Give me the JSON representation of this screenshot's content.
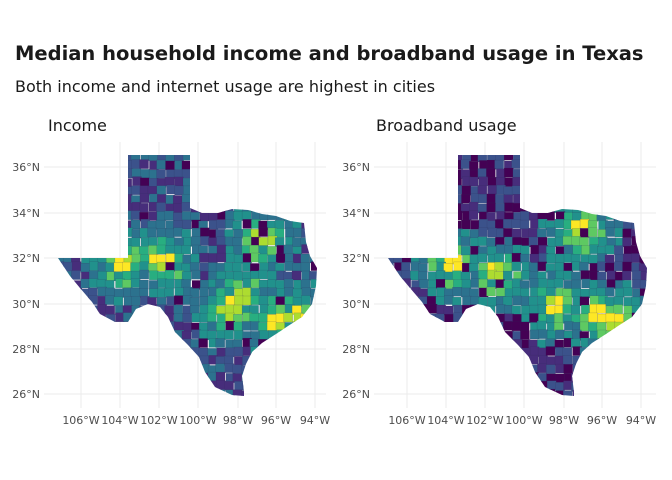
{
  "title": "Median household income and broadband usage in Texas",
  "subtitle": "Both income and internet usage are highest in cities",
  "panels": [
    {
      "id": "income",
      "title": "Income"
    },
    {
      "id": "broadband",
      "title": "Broadband usage"
    }
  ],
  "axes": {
    "lat_ticks": [
      "36°N",
      "34°N",
      "32°N",
      "30°N",
      "28°N",
      "26°N"
    ],
    "lon_ticks": [
      "106°W",
      "104°W",
      "102°W",
      "100°W",
      "98°W",
      "96°W",
      "94°W"
    ]
  },
  "colors": {
    "palette": [
      "#440154",
      "#472d7b",
      "#3b528b",
      "#2c728e",
      "#21918c",
      "#28ae80",
      "#5ec962",
      "#addc30",
      "#fde725"
    ],
    "grid": "#ebebeb"
  },
  "map_type": "choropleth",
  "color_scale": "viridis"
}
